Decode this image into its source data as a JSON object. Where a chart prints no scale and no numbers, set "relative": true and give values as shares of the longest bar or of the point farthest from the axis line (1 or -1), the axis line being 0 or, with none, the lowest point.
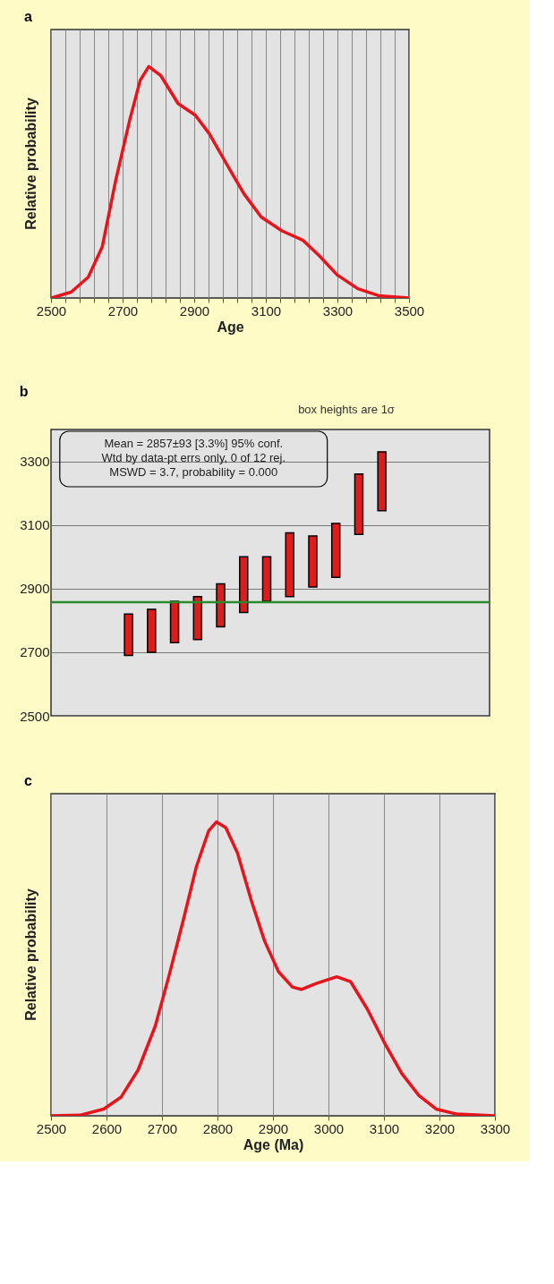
{
  "chart_data": [
    {
      "type": "line",
      "title": "a",
      "xlabel": "Age",
      "ylabel": "Relative probability",
      "relative": true,
      "grid": "x",
      "marker": "none",
      "line_style": "solid",
      "xlim": [
        2500,
        3500
      ],
      "xticks": [
        2500,
        {
          "value": 2540,
          "label": null
        },
        {
          "value": 2580,
          "label": null
        },
        {
          "value": 2620,
          "label": null
        },
        {
          "value": 2660,
          "label": null
        },
        2700,
        {
          "value": 2740,
          "label": null
        },
        {
          "value": 2780,
          "label": null
        },
        {
          "value": 2820,
          "label": null
        },
        {
          "value": 2860,
          "label": null
        },
        2900,
        {
          "value": 2940,
          "label": null
        },
        {
          "value": 2980,
          "label": null
        },
        {
          "value": 3020,
          "label": null
        },
        {
          "value": 3060,
          "label": null
        },
        3100,
        {
          "value": 3140,
          "label": null
        },
        {
          "value": 3180,
          "label": null
        },
        {
          "value": 3220,
          "label": null
        },
        {
          "value": 3260,
          "label": null
        },
        3300,
        {
          "value": 3340,
          "label": null
        },
        {
          "value": 3380,
          "label": null
        },
        {
          "value": 3420,
          "label": null
        },
        {
          "value": 3460,
          "label": null
        },
        3500
      ],
      "x": [
        2500,
        2556,
        2604,
        2643,
        2681,
        2720,
        2749,
        2773,
        2807,
        2855,
        2903,
        2942,
        2990,
        3039,
        3087,
        3145,
        3203,
        3251,
        3299,
        3357,
        3415,
        3500
      ],
      "series": [
        {
          "color": "#e8141c",
          "values": [
            0,
            0.025,
            0.09,
            0.22,
            0.51,
            0.77,
            0.94,
            1.0,
            0.96,
            0.84,
            0.79,
            0.71,
            0.58,
            0.45,
            0.35,
            0.29,
            0.25,
            0.18,
            0.1,
            0.04,
            0.01,
            0
          ]
        }
      ]
    },
    {
      "type": "bar",
      "title": "b",
      "categories": [
        null,
        null,
        null,
        null,
        null,
        null,
        null,
        null,
        null,
        null,
        null,
        null
      ],
      "tick_labels": "y",
      "grid": "y",
      "ylim": [
        2500,
        3400
      ],
      "yticks": [
        2500,
        2700,
        2900,
        3100,
        3300
      ],
      "base": [
        2690,
        2700,
        2730,
        2740,
        2780,
        2825,
        2860,
        2875,
        2905,
        2935,
        3070,
        3145
      ],
      "color": "#dd1c1c",
      "values": [
        130,
        135,
        130,
        135,
        135,
        175,
        140,
        200,
        160,
        170,
        190,
        185
      ],
      "ref_lines": [
        {
          "axis": "y",
          "value": 2857,
          "color": "#2b8a2b"
        }
      ],
      "annotations": [
        "box heights are 1σ",
        "Mean = 2857±93  [3.3%]  95% conf.",
        "Wtd by data-pt errs only, 0 of 12 rej.",
        "MSWD = 3.7, probability = 0.000"
      ]
    },
    {
      "type": "line",
      "title": "c",
      "xlabel": "Age (Ma)",
      "ylabel": "Relative probability",
      "relative": true,
      "grid": "x",
      "marker": "none",
      "line_style": "solid",
      "xlim": [
        2500,
        3300
      ],
      "xticks": [
        2500,
        2600,
        2700,
        2800,
        2900,
        3000,
        3100,
        3200,
        3300
      ],
      "x": [
        2500,
        2552,
        2595,
        2626,
        2657,
        2688,
        2713,
        2738,
        2762,
        2784,
        2798,
        2815,
        2836,
        2861,
        2885,
        2910,
        2935,
        2951,
        2978,
        3015,
        3040,
        3070,
        3101,
        3132,
        3163,
        3194,
        3231,
        3300
      ],
      "series": [
        {
          "color": "#e8141c",
          "values": [
            0,
            0.002,
            0.023,
            0.063,
            0.156,
            0.306,
            0.479,
            0.663,
            0.848,
            0.969,
            1.0,
            0.98,
            0.894,
            0.732,
            0.594,
            0.49,
            0.438,
            0.43,
            0.45,
            0.473,
            0.456,
            0.363,
            0.248,
            0.144,
            0.069,
            0.023,
            0.006,
            0
          ]
        }
      ]
    }
  ]
}
